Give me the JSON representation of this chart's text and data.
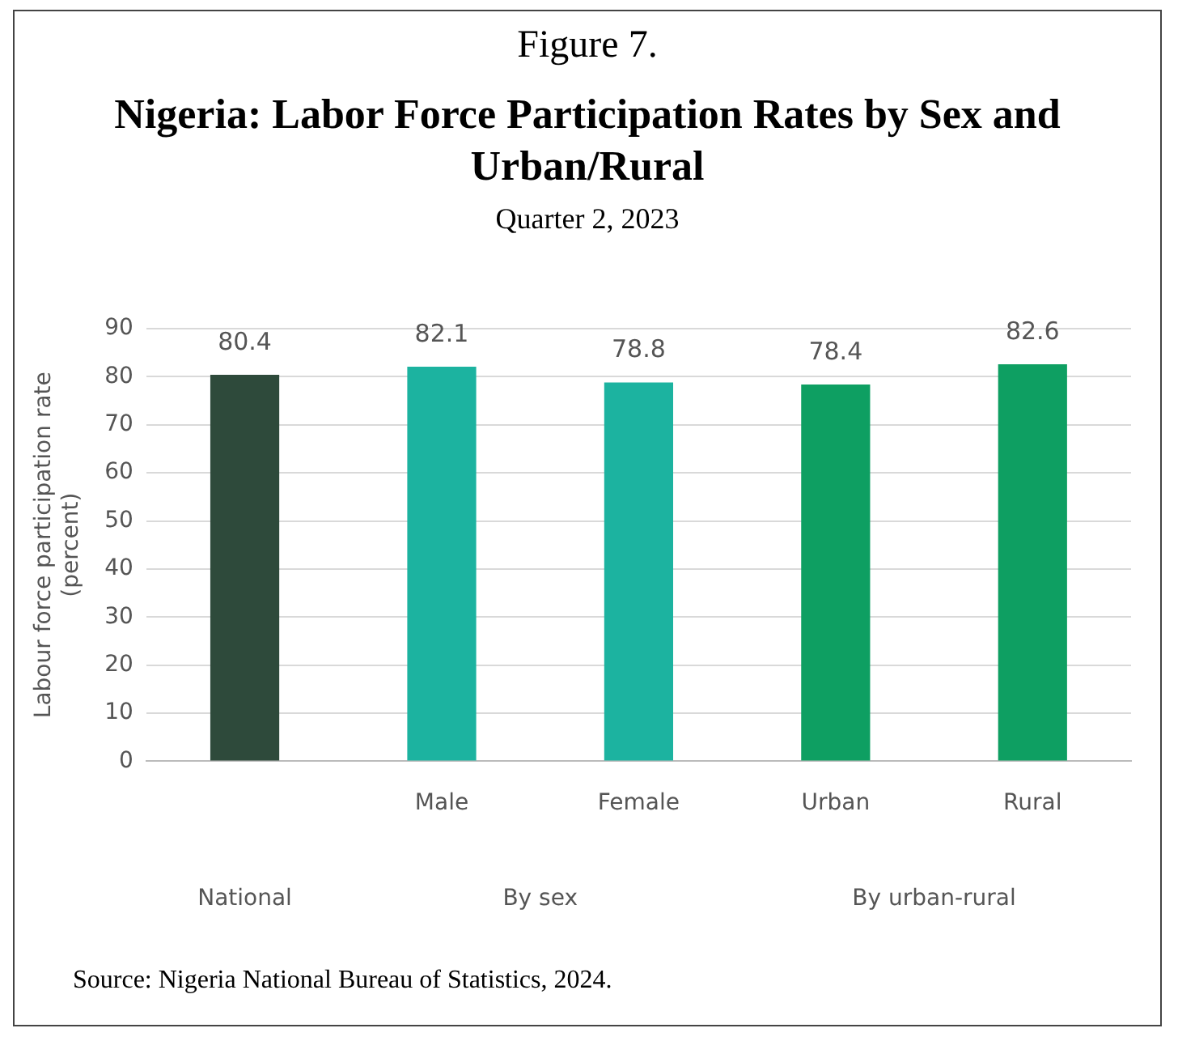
{
  "chart_data": {
    "type": "bar",
    "title": "Nigeria: Labor Force Participation Rates by Sex and Urban/Rural",
    "subtitle": "Quarter 2, 2023",
    "ylabel": "Labour force participation rate (percent)",
    "categories": [
      null,
      "Male",
      "Female",
      "Urban",
      "Rural"
    ],
    "values": [
      80.4,
      82.1,
      78.8,
      78.4,
      82.6
    ],
    "colors": [
      "#2e4a3b",
      "#1cb3a0",
      "#1cb3a0",
      "#0e9f62",
      "#0e9f62"
    ],
    "ylim": [
      0,
      90
    ],
    "yticks": [
      0,
      10,
      20,
      30,
      40,
      50,
      60,
      70,
      80,
      90
    ],
    "grid": "y",
    "legend": false,
    "data_labels": true,
    "annotations": [
      "Figure 7.",
      "National",
      "By sex",
      "By urban-rural",
      "Source:  Nigeria National Bureau of Statistics, 2024."
    ]
  }
}
